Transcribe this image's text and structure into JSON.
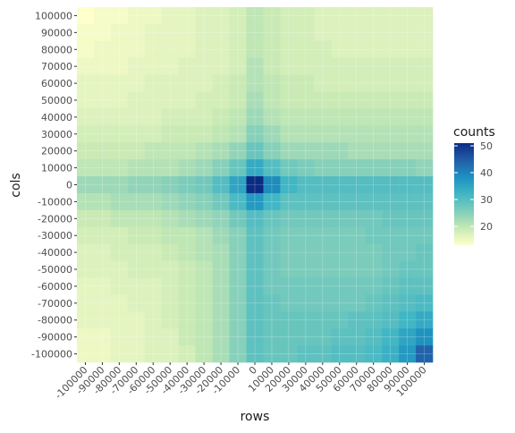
{
  "chart_data": {
    "type": "heatmap",
    "xlabel": "rows",
    "ylabel": "cols",
    "x_categories": [
      "-100000",
      "-90000",
      "-80000",
      "-70000",
      "-60000",
      "-50000",
      "-40000",
      "-30000",
      "-20000",
      "-10000",
      "0",
      "10000",
      "20000",
      "30000",
      "40000",
      "50000",
      "60000",
      "70000",
      "80000",
      "90000",
      "100000"
    ],
    "y_categories": [
      "-100000",
      "-90000",
      "-80000",
      "-70000",
      "-60000",
      "-50000",
      "-40000",
      "-30000",
      "-20000",
      "-10000",
      "0",
      "10000",
      "20000",
      "30000",
      "40000",
      "50000",
      "60000",
      "70000",
      "80000",
      "90000",
      "100000"
    ],
    "value_range": [
      13,
      51
    ],
    "values_note_rows": "rows listed from y=100000 (top) to y=-100000 (bottom); columns from x=-100000 to x=100000",
    "values": [
      [
        13,
        14,
        14,
        15,
        15,
        16,
        16,
        17,
        17,
        18,
        20,
        19,
        18,
        18,
        17,
        17,
        17,
        17,
        17,
        17,
        17
      ],
      [
        14,
        14,
        15,
        15,
        16,
        16,
        16,
        17,
        17,
        18,
        20,
        19,
        18,
        18,
        17,
        17,
        17,
        17,
        17,
        17,
        17
      ],
      [
        14,
        15,
        15,
        15,
        16,
        16,
        16,
        17,
        17,
        18,
        20,
        19,
        18,
        18,
        18,
        17,
        17,
        17,
        17,
        17,
        17
      ],
      [
        15,
        15,
        15,
        16,
        16,
        16,
        17,
        17,
        17,
        18,
        21,
        19,
        18,
        18,
        18,
        18,
        18,
        18,
        18,
        18,
        18
      ],
      [
        16,
        16,
        16,
        16,
        17,
        17,
        17,
        17,
        18,
        19,
        21,
        20,
        19,
        19,
        18,
        18,
        18,
        18,
        18,
        18,
        18
      ],
      [
        16,
        16,
        16,
        17,
        17,
        17,
        17,
        18,
        18,
        19,
        22,
        20,
        19,
        19,
        19,
        19,
        19,
        19,
        19,
        19,
        19
      ],
      [
        17,
        17,
        17,
        17,
        17,
        18,
        18,
        18,
        19,
        20,
        23,
        21,
        20,
        20,
        20,
        20,
        20,
        20,
        20,
        20,
        20
      ],
      [
        18,
        18,
        18,
        18,
        18,
        19,
        19,
        19,
        20,
        21,
        25,
        23,
        21,
        21,
        21,
        21,
        21,
        21,
        21,
        21,
        21
      ],
      [
        19,
        19,
        19,
        19,
        20,
        20,
        20,
        21,
        22,
        24,
        28,
        25,
        23,
        23,
        23,
        23,
        22,
        22,
        22,
        22,
        22
      ],
      [
        20,
        20,
        20,
        21,
        21,
        21,
        22,
        23,
        25,
        28,
        34,
        30,
        27,
        26,
        25,
        25,
        25,
        25,
        25,
        25,
        24
      ],
      [
        23,
        23,
        23,
        24,
        24,
        25,
        26,
        27,
        30,
        35,
        51,
        39,
        32,
        30,
        30,
        30,
        30,
        30,
        30,
        30,
        30
      ],
      [
        21,
        21,
        22,
        22,
        22,
        23,
        24,
        25,
        27,
        31,
        37,
        32,
        29,
        29,
        29,
        29,
        29,
        29,
        29,
        29,
        29
      ],
      [
        19,
        19,
        20,
        20,
        20,
        21,
        22,
        23,
        24,
        27,
        30,
        28,
        27,
        27,
        27,
        27,
        27,
        27,
        28,
        28,
        28
      ],
      [
        18,
        18,
        18,
        19,
        19,
        20,
        20,
        21,
        23,
        25,
        29,
        27,
        26,
        26,
        26,
        26,
        26,
        27,
        27,
        27,
        27
      ],
      [
        17,
        17,
        18,
        18,
        18,
        19,
        20,
        21,
        22,
        25,
        29,
        27,
        26,
        26,
        26,
        26,
        26,
        26,
        27,
        27,
        28
      ],
      [
        17,
        17,
        17,
        18,
        18,
        18,
        19,
        20,
        22,
        25,
        29,
        27,
        26,
        26,
        26,
        26,
        26,
        26,
        27,
        28,
        28
      ],
      [
        16,
        16,
        17,
        17,
        17,
        18,
        19,
        20,
        22,
        25,
        29,
        27,
        27,
        27,
        27,
        27,
        27,
        27,
        28,
        29,
        29
      ],
      [
        16,
        16,
        16,
        17,
        17,
        18,
        19,
        20,
        22,
        25,
        29,
        28,
        27,
        27,
        27,
        27,
        27,
        28,
        29,
        30,
        31
      ],
      [
        16,
        16,
        16,
        16,
        17,
        18,
        19,
        20,
        22,
        25,
        29,
        28,
        28,
        28,
        28,
        28,
        29,
        29,
        30,
        32,
        34
      ],
      [
        15,
        15,
        16,
        16,
        17,
        17,
        19,
        20,
        22,
        25,
        29,
        28,
        28,
        28,
        28,
        29,
        29,
        30,
        32,
        35,
        38
      ],
      [
        15,
        15,
        16,
        16,
        17,
        17,
        18,
        20,
        22,
        25,
        29,
        28,
        28,
        29,
        29,
        30,
        30,
        31,
        33,
        37,
        44
      ]
    ],
    "legend_title": "counts",
    "legend_ticks": [
      20,
      30,
      40,
      50
    ],
    "color_stops": [
      "#ffffcc",
      "#c7e9b4",
      "#7fcdbb",
      "#41b6c4",
      "#1d91c0",
      "#225ea8",
      "#0c2c84"
    ],
    "grid": true,
    "legend_position": "right"
  }
}
